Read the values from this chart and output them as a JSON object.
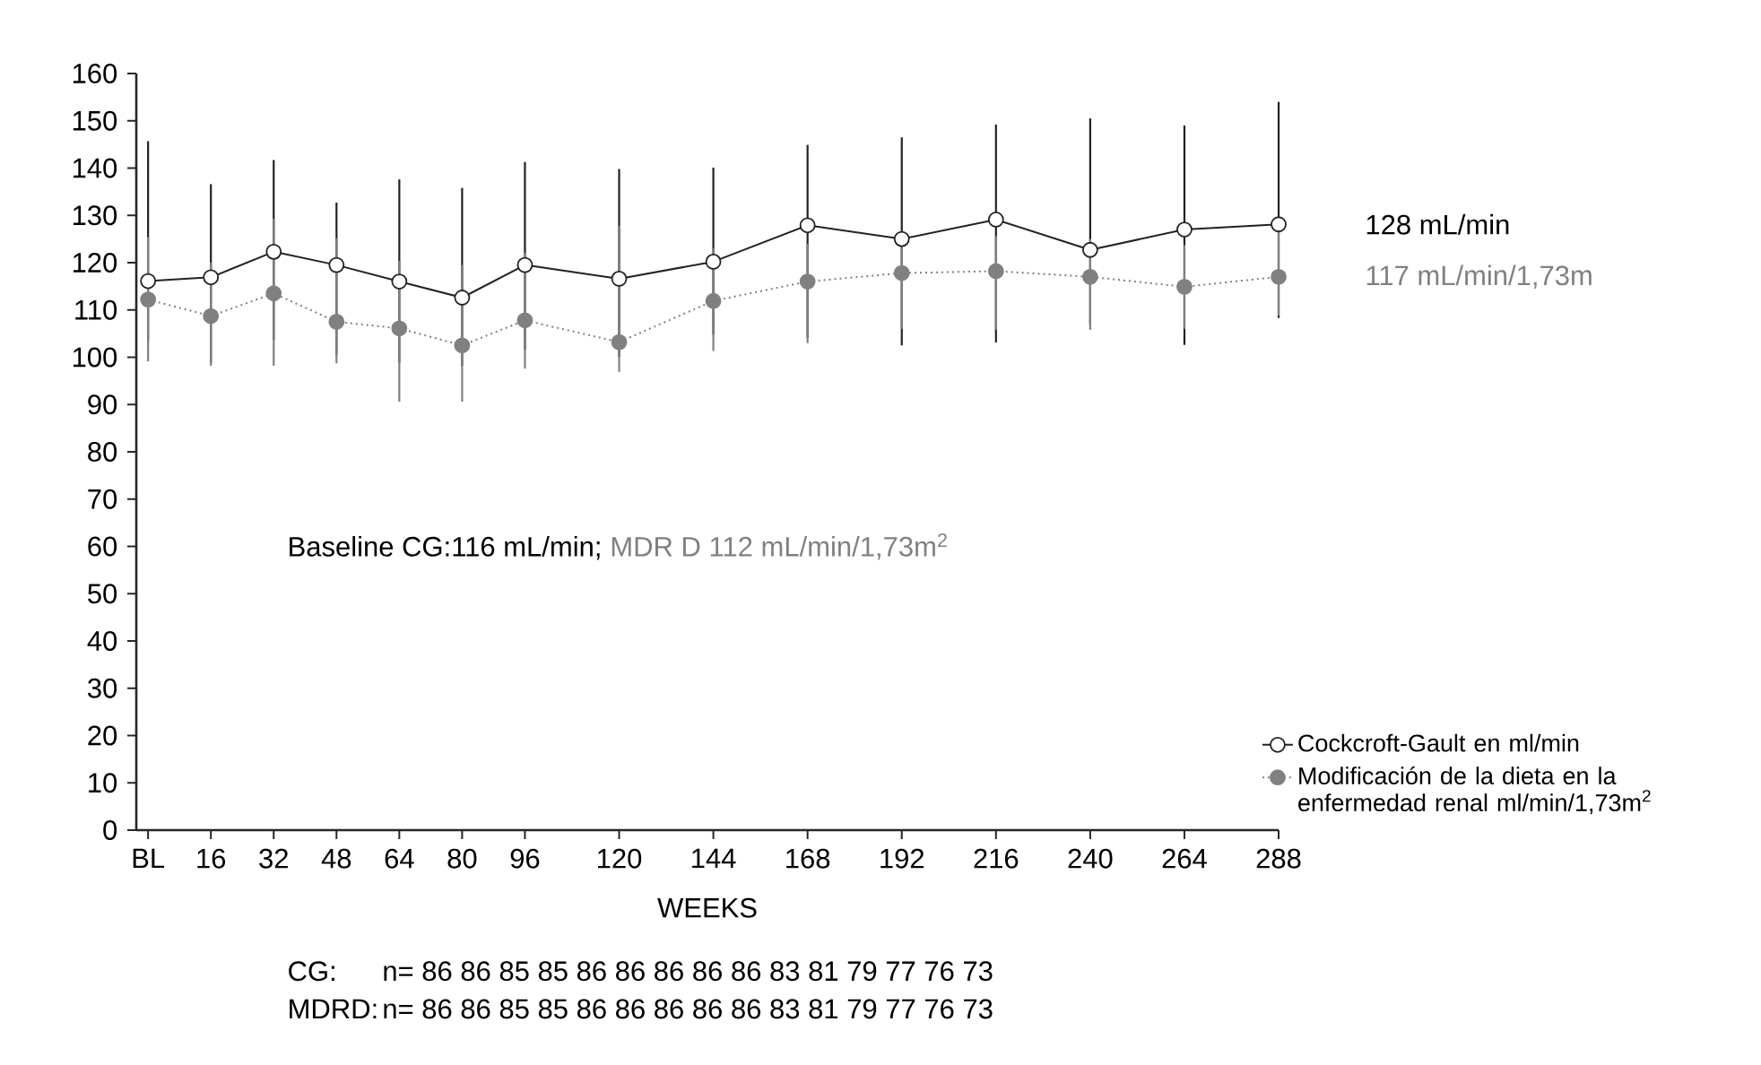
{
  "chart_data": {
    "type": "line",
    "xlabel": "WEEKS",
    "x": [
      0,
      16,
      32,
      48,
      64,
      80,
      96,
      120,
      144,
      168,
      192,
      216,
      240,
      264,
      288
    ],
    "series": [
      {
        "name": "Cockcroft-Gault en ml/min",
        "color": "#222222",
        "marker": "circle",
        "line_style": "solid",
        "values": [
          116.1,
          116.9,
          122.3,
          119.5,
          116,
          112.6,
          119.5,
          116.6,
          120.2,
          127.9,
          125,
          129.1,
          122.7,
          127,
          128.1
        ],
        "errors": [
          [
            103.5,
            145.7
          ],
          [
            98.8,
            136.6
          ],
          [
            103.7,
            141.7
          ],
          [
            100.5,
            132.7
          ],
          [
            98.8,
            137.6
          ],
          [
            98.2,
            135.8
          ],
          [
            101.6,
            141.3
          ],
          [
            100.1,
            139.8
          ],
          [
            104.8,
            140.1
          ],
          [
            104.1,
            144.9
          ],
          [
            102.5,
            146.5
          ],
          [
            103.1,
            149.2
          ],
          [
            107,
            150.5
          ],
          [
            102.6,
            149
          ],
          [
            108.3,
            154
          ]
        ]
      },
      {
        "name": "Modificación de la dieta en la enfermedad renal ml/min/1,73m$^{2}$",
        "color": "#808080",
        "marker": "circle",
        "line_style": "dotted",
        "values": [
          112.2,
          108.7,
          113.5,
          107.5,
          106.1,
          102.5,
          107.8,
          103.2,
          111.9,
          116,
          117.8,
          118.2,
          117,
          114.9,
          117
        ],
        "errors": [
          [
            99.1,
            125.4
          ],
          [
            98.2,
            120
          ],
          [
            98.2,
            129.3
          ],
          [
            98.7,
            125.2
          ],
          [
            90.6,
            120.4
          ],
          [
            90.6,
            119.5
          ],
          [
            97.6,
            122.1
          ],
          [
            96.9,
            127.8
          ],
          [
            101.3,
            123
          ],
          [
            103,
            124
          ],
          [
            106,
            123.7
          ],
          [
            105.8,
            125.6
          ],
          [
            105.8,
            125
          ],
          [
            106,
            123.7
          ],
          [
            108.8,
            127.2
          ]
        ]
      }
    ],
    "xlim": [
      -3,
      288
    ],
    "ylim": [
      0,
      160
    ],
    "xticks": [
      {
        "value": 0,
        "label": "BL"
      },
      16,
      32,
      48,
      64,
      80,
      96,
      120,
      144,
      168,
      192,
      216,
      240,
      264,
      288
    ],
    "yticks": [
      0,
      10,
      20,
      30,
      40,
      50,
      60,
      70,
      80,
      90,
      100,
      110,
      120,
      130,
      140,
      150,
      160
    ],
    "grid": false,
    "legend": "bottom right",
    "annotations": [
      "128 mL/min",
      "117 mL/min/1,73m",
      "Baseline CG:116 mL/min;",
      "MDR D 112 mL/min/1,73m$^{2}$",
      "CG:",
      "n= 86 86 85 85 86 86 86 86 86 83 81 79 77 76 73",
      "MDRD:",
      "n= 86 86 85 85 86 86 86 86 86 83 81 79 77 76 73"
    ]
  }
}
